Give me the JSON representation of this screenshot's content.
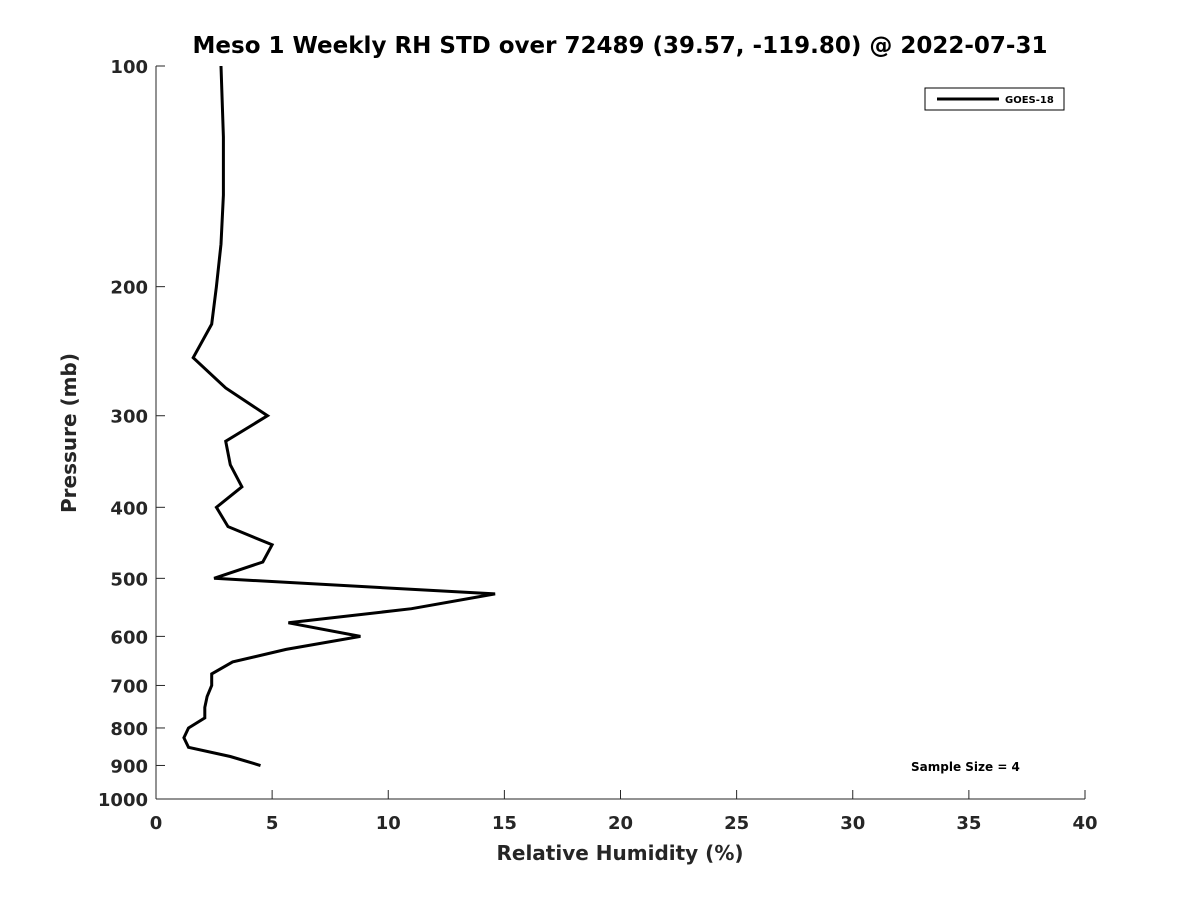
{
  "chart_data": {
    "type": "line",
    "title": "Meso 1 Weekly RH STD over 72489 (39.57, -119.80) @ 2022-07-31",
    "xlabel": "Relative Humidity (%)",
    "ylabel": "Pressure (mb)",
    "xlim": [
      0,
      40
    ],
    "ylim": [
      1000,
      100
    ],
    "y_scale": "log",
    "y_reversed": true,
    "x_ticks": [
      0,
      5,
      10,
      15,
      20,
      25,
      30,
      35,
      40
    ],
    "y_ticks": [
      100,
      200,
      300,
      400,
      500,
      600,
      700,
      800,
      900,
      1000
    ],
    "grid": false,
    "legend_position": "top-right",
    "annotation": "Sample Size = 4",
    "series": [
      {
        "name": "GOES-18",
        "color": "#000000",
        "points": [
          {
            "x": 2.8,
            "y": 100
          },
          {
            "x": 2.9,
            "y": 125
          },
          {
            "x": 2.9,
            "y": 150
          },
          {
            "x": 2.8,
            "y": 175
          },
          {
            "x": 2.6,
            "y": 200
          },
          {
            "x": 2.4,
            "y": 225
          },
          {
            "x": 1.6,
            "y": 250
          },
          {
            "x": 3.0,
            "y": 275
          },
          {
            "x": 4.8,
            "y": 300
          },
          {
            "x": 3.0,
            "y": 325
          },
          {
            "x": 3.2,
            "y": 350
          },
          {
            "x": 3.7,
            "y": 375
          },
          {
            "x": 2.6,
            "y": 400
          },
          {
            "x": 3.1,
            "y": 425
          },
          {
            "x": 5.0,
            "y": 450
          },
          {
            "x": 4.6,
            "y": 475
          },
          {
            "x": 2.5,
            "y": 500
          },
          {
            "x": 14.6,
            "y": 525
          },
          {
            "x": 11.0,
            "y": 550
          },
          {
            "x": 5.7,
            "y": 575
          },
          {
            "x": 8.8,
            "y": 600
          },
          {
            "x": 5.6,
            "y": 625
          },
          {
            "x": 3.3,
            "y": 650
          },
          {
            "x": 2.4,
            "y": 675
          },
          {
            "x": 2.4,
            "y": 700
          },
          {
            "x": 2.2,
            "y": 725
          },
          {
            "x": 2.1,
            "y": 750
          },
          {
            "x": 2.1,
            "y": 775
          },
          {
            "x": 1.4,
            "y": 800
          },
          {
            "x": 1.2,
            "y": 825
          },
          {
            "x": 1.4,
            "y": 850
          },
          {
            "x": 3.2,
            "y": 875
          },
          {
            "x": 4.5,
            "y": 900
          }
        ]
      }
    ]
  }
}
